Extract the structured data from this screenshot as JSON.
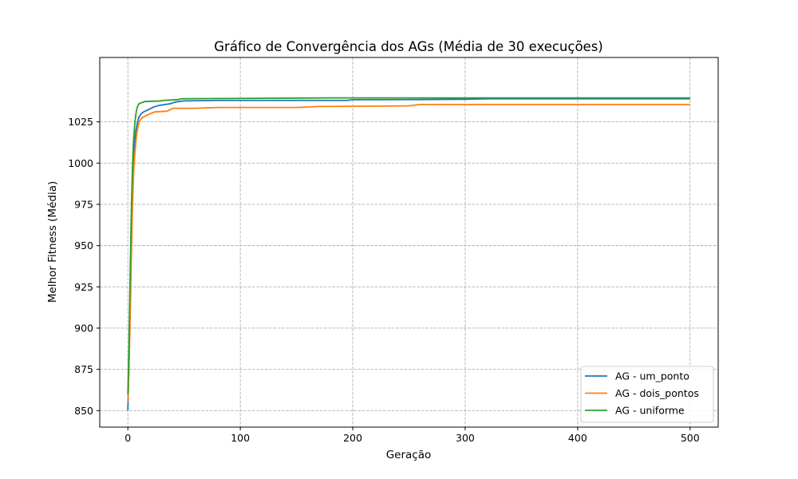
{
  "chart_data": {
    "type": "line",
    "title": "Gráfico de Convergência dos AGs (Média de 30 execuções)",
    "xlabel": "Geração",
    "ylabel": "Melhor Fitness (Média)",
    "xlim": [
      -25,
      525
    ],
    "ylim": [
      840,
      1064
    ],
    "xticks": [
      0,
      100,
      200,
      300,
      400,
      500
    ],
    "yticks": [
      850,
      875,
      900,
      925,
      950,
      975,
      1000,
      1025
    ],
    "grid": true,
    "legend_position": "lower-right",
    "series": [
      {
        "name": "AG - um_ponto",
        "color": "#1f77b4",
        "points": [
          [
            0,
            850
          ],
          [
            1,
            880
          ],
          [
            2,
            915
          ],
          [
            3,
            950
          ],
          [
            4,
            985
          ],
          [
            5,
            1002
          ],
          [
            6,
            1012
          ],
          [
            7,
            1019
          ],
          [
            8,
            1023
          ],
          [
            9,
            1026
          ],
          [
            10,
            1028
          ],
          [
            12,
            1030
          ],
          [
            14,
            1031
          ],
          [
            17,
            1032
          ],
          [
            20,
            1033
          ],
          [
            23,
            1034
          ],
          [
            28,
            1035
          ],
          [
            33,
            1035.5
          ],
          [
            38,
            1036
          ],
          [
            42,
            1037
          ],
          [
            50,
            1037.7
          ],
          [
            80,
            1038
          ],
          [
            150,
            1038
          ],
          [
            195,
            1038
          ],
          [
            200,
            1038.4
          ],
          [
            260,
            1038.5
          ],
          [
            300,
            1038.7
          ],
          [
            320,
            1039
          ],
          [
            500,
            1039
          ]
        ]
      },
      {
        "name": "AG - dois_pontos",
        "color": "#ff7f0e",
        "points": [
          [
            0,
            855
          ],
          [
            1,
            875
          ],
          [
            2,
            905
          ],
          [
            3,
            940
          ],
          [
            4,
            972
          ],
          [
            5,
            992
          ],
          [
            6,
            1004
          ],
          [
            7,
            1012
          ],
          [
            8,
            1018
          ],
          [
            9,
            1022
          ],
          [
            10,
            1025
          ],
          [
            12,
            1027
          ],
          [
            14,
            1028
          ],
          [
            17,
            1029
          ],
          [
            20,
            1030
          ],
          [
            24,
            1031
          ],
          [
            35,
            1031.5
          ],
          [
            38,
            1032.5
          ],
          [
            40,
            1033.2
          ],
          [
            60,
            1033.2
          ],
          [
            80,
            1033.7
          ],
          [
            150,
            1033.7
          ],
          [
            170,
            1034.3
          ],
          [
            215,
            1034.5
          ],
          [
            250,
            1034.7
          ],
          [
            260,
            1035.5
          ],
          [
            500,
            1035.5
          ]
        ]
      },
      {
        "name": "AG - uniforme",
        "color": "#2ca02c",
        "points": [
          [
            0,
            860
          ],
          [
            1,
            890
          ],
          [
            2,
            930
          ],
          [
            3,
            968
          ],
          [
            4,
            995
          ],
          [
            5,
            1013
          ],
          [
            6,
            1023
          ],
          [
            7,
            1029
          ],
          [
            8,
            1033
          ],
          [
            9,
            1035
          ],
          [
            10,
            1036
          ],
          [
            13,
            1036.8
          ],
          [
            15,
            1037.3
          ],
          [
            28,
            1037.6
          ],
          [
            32,
            1038
          ],
          [
            45,
            1038.5
          ],
          [
            48,
            1039
          ],
          [
            100,
            1039.2
          ],
          [
            180,
            1039.5
          ],
          [
            500,
            1039.5
          ]
        ]
      }
    ]
  }
}
